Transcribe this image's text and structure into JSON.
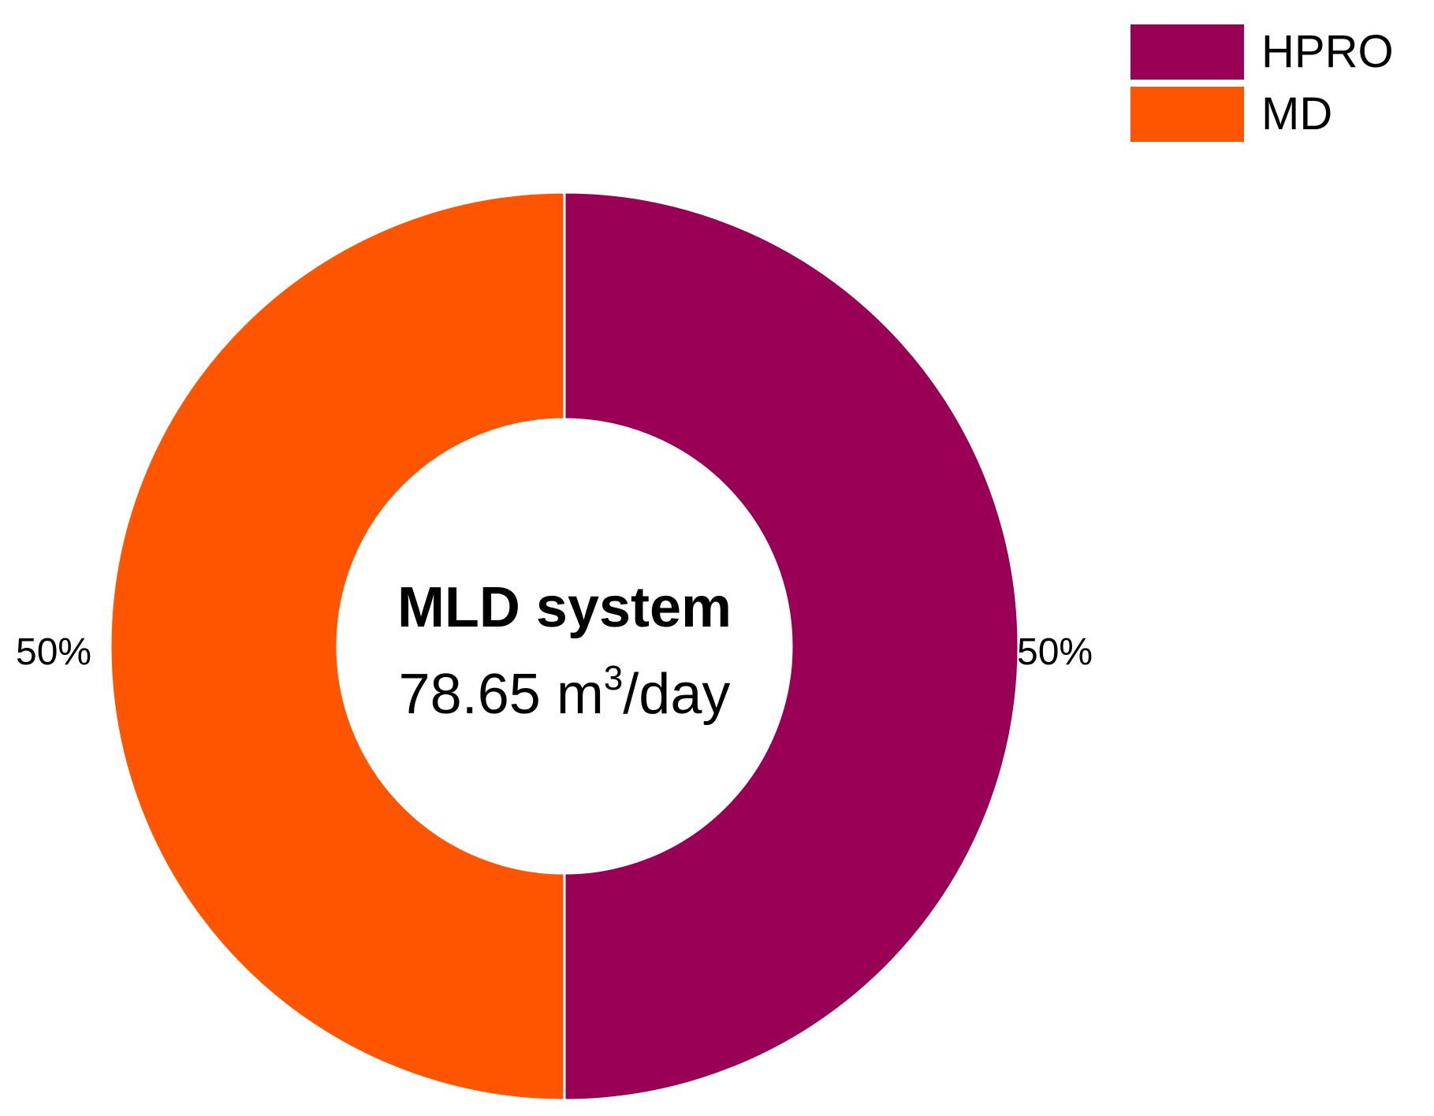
{
  "chart_data": {
    "type": "pie",
    "variant": "donut",
    "slices": [
      {
        "name": "HPRO",
        "value": 50,
        "label": "50%",
        "color": "#990055"
      },
      {
        "name": "MD",
        "value": 50,
        "label": "50%",
        "color": "#FF5500"
      }
    ],
    "center": {
      "title": "MLD system",
      "value_number": "78.65 m",
      "value_superscript": "3",
      "value_unit": "/day"
    },
    "legend": {
      "placement": "top-right",
      "items": [
        {
          "label": "HPRO",
          "color": "#990055"
        },
        {
          "label": "MD",
          "color": "#FF5500"
        }
      ]
    }
  }
}
